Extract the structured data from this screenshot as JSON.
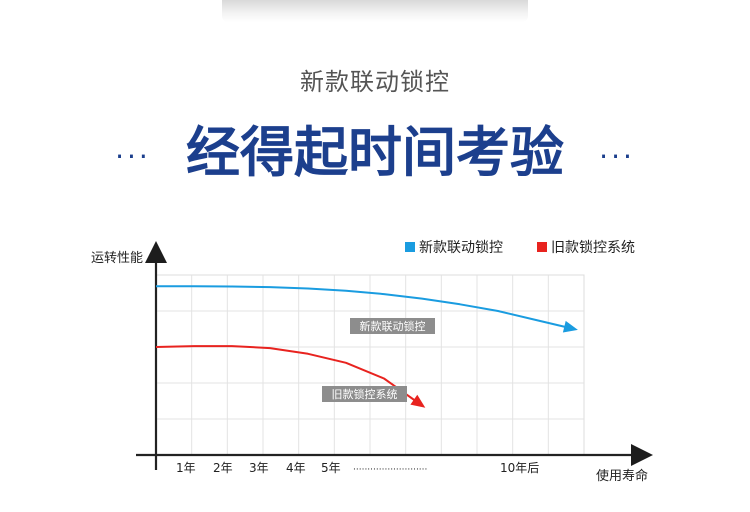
{
  "header": {
    "subtitle": "新款联动锁控",
    "title": "经得起时间考验",
    "title_dots_left": "···",
    "title_dots_right": "···"
  },
  "chart_data": {
    "type": "line",
    "ylabel": "运转性能",
    "xlabel": "使用寿命",
    "categories": [
      "1年",
      "2年",
      "3年",
      "4年",
      "5年",
      "··························",
      "10年后"
    ],
    "grid": true,
    "legend_position": "top-right",
    "series": [
      {
        "name": "新款联动锁控",
        "color": "#1a9ce0",
        "label": "新款联动锁控",
        "x": [
          0,
          1,
          2,
          3,
          4,
          5,
          6,
          7,
          8,
          9,
          10,
          11
        ],
        "y": [
          0.75,
          0.75,
          0.749,
          0.746,
          0.74,
          0.73,
          0.715,
          0.695,
          0.67,
          0.64,
          0.6,
          0.56
        ]
      },
      {
        "name": "旧款锁控系统",
        "color": "#e8231f",
        "label": "旧款锁控系统",
        "x": [
          0,
          1,
          2,
          3,
          4,
          5,
          6,
          7
        ],
        "y": [
          0.48,
          0.484,
          0.484,
          0.475,
          0.45,
          0.41,
          0.34,
          0.22
        ]
      }
    ]
  }
}
